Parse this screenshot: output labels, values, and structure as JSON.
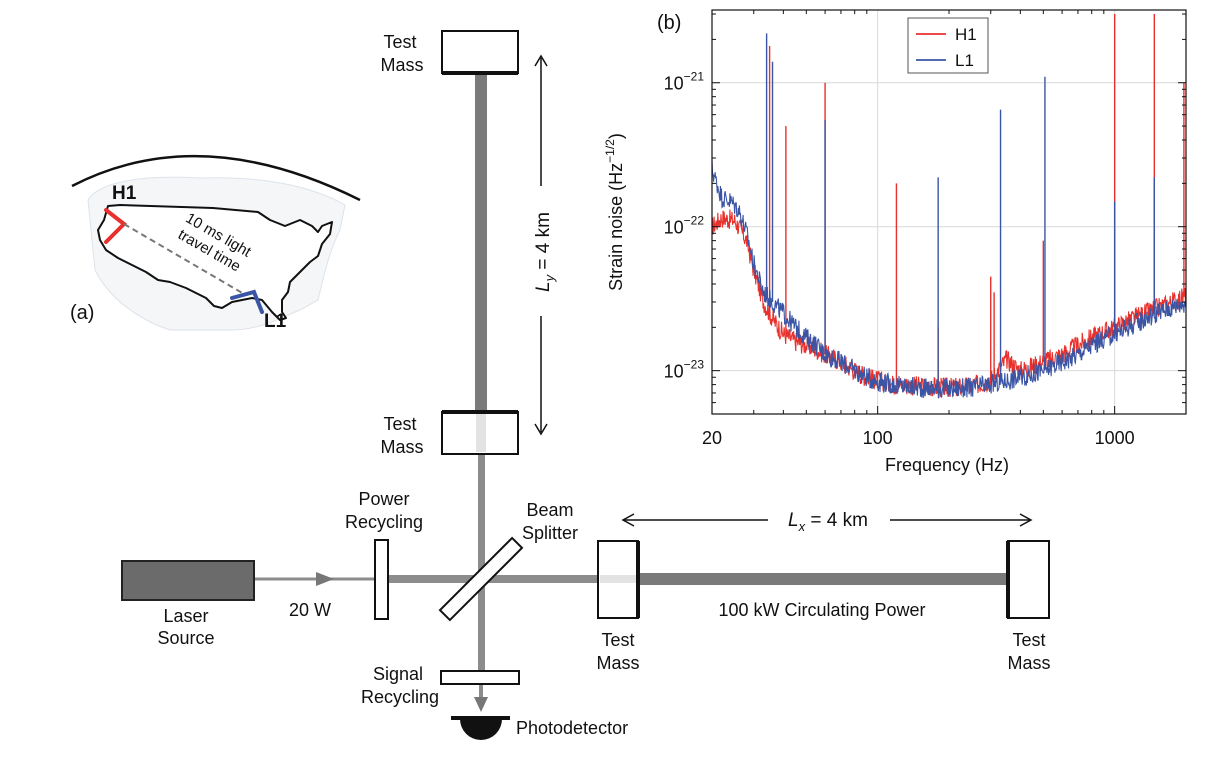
{
  "panel_a": {
    "label": "(a)",
    "h1_label": "H1",
    "l1_label": "L1",
    "travel_line1": "10 ms light",
    "travel_line2": "travel time",
    "colors": {
      "H1": "#e8302c",
      "L1": "#3a55a5"
    }
  },
  "interferometer": {
    "top_test_mass": [
      "Test",
      "Mass"
    ],
    "inner_y_test_mass": [
      "Test",
      "Mass"
    ],
    "inner_x_test_mass": [
      "Test",
      "Mass"
    ],
    "far_x_test_mass": [
      "Test",
      "Mass"
    ],
    "ly_label": {
      "L": "L",
      "sub": "y",
      "rest": " = 4 km"
    },
    "lx_label": {
      "L": "L",
      "sub": "x",
      "rest": " = 4 km"
    },
    "power_recycling": [
      "Power",
      "Recycling"
    ],
    "beam_splitter": [
      "Beam",
      "Splitter"
    ],
    "laser_source": [
      "Laser",
      "Source"
    ],
    "laser_power": "20 W",
    "circulating_power": "100 kW Circulating Power",
    "signal_recycling": [
      "Signal",
      "Recycling"
    ],
    "photodetector": "Photodetector"
  },
  "chart_data": {
    "type": "line",
    "panel_label": "(b)",
    "xlabel": "Frequency (Hz)",
    "ylabel_main": "Strain noise (Hz",
    "ylabel_sup": "−1/2",
    "ylabel_close": ")",
    "x_scale": "log",
    "y_scale": "log",
    "xlim": [
      20,
      2000
    ],
    "ylim": [
      5e-24,
      3.2e-21
    ],
    "x_ticks": [
      20,
      100,
      1000
    ],
    "x_tick_labels": [
      "20",
      "100",
      "1000"
    ],
    "y_ticks": [
      1e-23,
      1e-22,
      1e-21
    ],
    "y_tick_labels": [
      {
        "base": "10",
        "exp": "−23"
      },
      {
        "base": "10",
        "exp": "−22"
      },
      {
        "base": "10",
        "exp": "−21"
      }
    ],
    "grid": true,
    "legend_position": "top-center",
    "series": [
      {
        "name": "H1",
        "color": "#e8302c",
        "points": [
          [
            20,
            1e-22
          ],
          [
            22,
            1.15e-22
          ],
          [
            25,
            1.1e-22
          ],
          [
            28,
            8e-23
          ],
          [
            30,
            5e-23
          ],
          [
            33,
            3e-23
          ],
          [
            36,
            2.3e-23
          ],
          [
            40,
            1.8e-23
          ],
          [
            45,
            1.6e-23
          ],
          [
            50,
            1.5e-23
          ],
          [
            55,
            1.4e-23
          ],
          [
            60,
            1.3e-23
          ],
          [
            70,
            1.15e-23
          ],
          [
            80,
            1e-23
          ],
          [
            90,
            9e-24
          ],
          [
            100,
            8.6e-24
          ],
          [
            120,
            8e-24
          ],
          [
            150,
            7.8e-24
          ],
          [
            200,
            7.6e-24
          ],
          [
            250,
            7.8e-24
          ],
          [
            300,
            8.6e-24
          ],
          [
            350,
            1.2e-23
          ],
          [
            400,
            1e-23
          ],
          [
            500,
            1.15e-23
          ],
          [
            600,
            1.3e-23
          ],
          [
            700,
            1.5e-23
          ],
          [
            800,
            1.7e-23
          ],
          [
            1000,
            2e-23
          ],
          [
            1200,
            2.3e-23
          ],
          [
            1500,
            2.7e-23
          ],
          [
            2000,
            3.3e-23
          ]
        ],
        "lines": [
          [
            35,
            1.8e-21
          ],
          [
            41,
            5e-22
          ],
          [
            60,
            1e-21
          ],
          [
            120,
            2e-22
          ],
          [
            180,
            2e-23
          ],
          [
            300,
            4.5e-23
          ],
          [
            310,
            3.5e-23
          ],
          [
            500,
            8e-23
          ],
          [
            1000,
            3e-21
          ],
          [
            1470,
            3e-21
          ],
          [
            1960,
            1e-21
          ]
        ]
      },
      {
        "name": "L1",
        "color": "#3a55a5",
        "points": [
          [
            20,
            2.5e-22
          ],
          [
            22,
            1.6e-22
          ],
          [
            24,
            1.5e-22
          ],
          [
            26,
            1.3e-22
          ],
          [
            28,
            9e-23
          ],
          [
            30,
            5.5e-23
          ],
          [
            33,
            3.5e-23
          ],
          [
            36,
            3e-23
          ],
          [
            40,
            2.5e-23
          ],
          [
            45,
            2e-23
          ],
          [
            50,
            1.7e-23
          ],
          [
            55,
            1.5e-23
          ],
          [
            60,
            1.3e-23
          ],
          [
            70,
            1.15e-23
          ],
          [
            80,
            1e-23
          ],
          [
            90,
            9e-24
          ],
          [
            100,
            8.4e-24
          ],
          [
            120,
            7.9e-24
          ],
          [
            150,
            7.6e-24
          ],
          [
            200,
            7.5e-24
          ],
          [
            250,
            7.6e-24
          ],
          [
            300,
            8e-24
          ],
          [
            400,
            9e-24
          ],
          [
            500,
            1e-23
          ],
          [
            600,
            1.15e-23
          ],
          [
            700,
            1.3e-23
          ],
          [
            800,
            1.5e-23
          ],
          [
            1000,
            1.8e-23
          ],
          [
            1200,
            2.1e-23
          ],
          [
            1500,
            2.5e-23
          ],
          [
            2000,
            3e-23
          ]
        ],
        "lines": [
          [
            34,
            2.2e-21
          ],
          [
            36,
            1.4e-21
          ],
          [
            60,
            5.5e-22
          ],
          [
            180,
            2.2e-22
          ],
          [
            330,
            6.5e-22
          ],
          [
            508,
            1.1e-21
          ],
          [
            1000,
            1.5e-22
          ],
          [
            1470,
            2.2e-22
          ]
        ]
      }
    ]
  }
}
